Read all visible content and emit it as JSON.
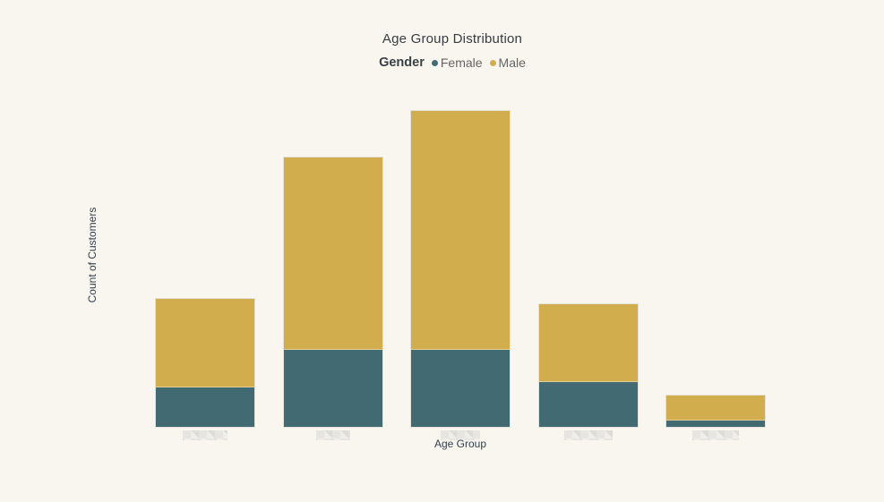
{
  "title": "Age Group Distribution",
  "legend": {
    "title": "Gender",
    "items": [
      {
        "label": "Female",
        "color": "#426A72"
      },
      {
        "label": "Male",
        "color": "#D2AD4D"
      }
    ]
  },
  "x_axis": {
    "title": "Age Group",
    "tick_labels_redacted": true
  },
  "y_axis": {
    "title": "Count of Customers"
  },
  "colors": {
    "background": "#F8F6EF",
    "female": "#426A72",
    "male": "#D2AD4D"
  },
  "chart_data": {
    "type": "bar",
    "stacked": true,
    "title": "Age Group Distribution",
    "xlabel": "Age Group",
    "ylabel": "Count of Customers",
    "categories": [
      "[redacted]",
      "[redacted]",
      "[redacted]",
      "[redacted]",
      "[redacted]"
    ],
    "series": [
      {
        "name": "Female",
        "color": "#426A72",
        "values": [
          44,
          86,
          86,
          50,
          7
        ]
      },
      {
        "name": "Male",
        "color": "#D2AD4D",
        "values": [
          99,
          215,
          267,
          87,
          28
        ]
      }
    ],
    "totals": [
      143,
      301,
      353,
      137,
      35
    ],
    "value_units": "relative units (no numeric y-axis ticks shown)",
    "ylim": [
      0,
      373
    ],
    "grid": false,
    "legend_position": "top",
    "x_tick_blur_widths": [
      50,
      38,
      44,
      54,
      52
    ]
  }
}
